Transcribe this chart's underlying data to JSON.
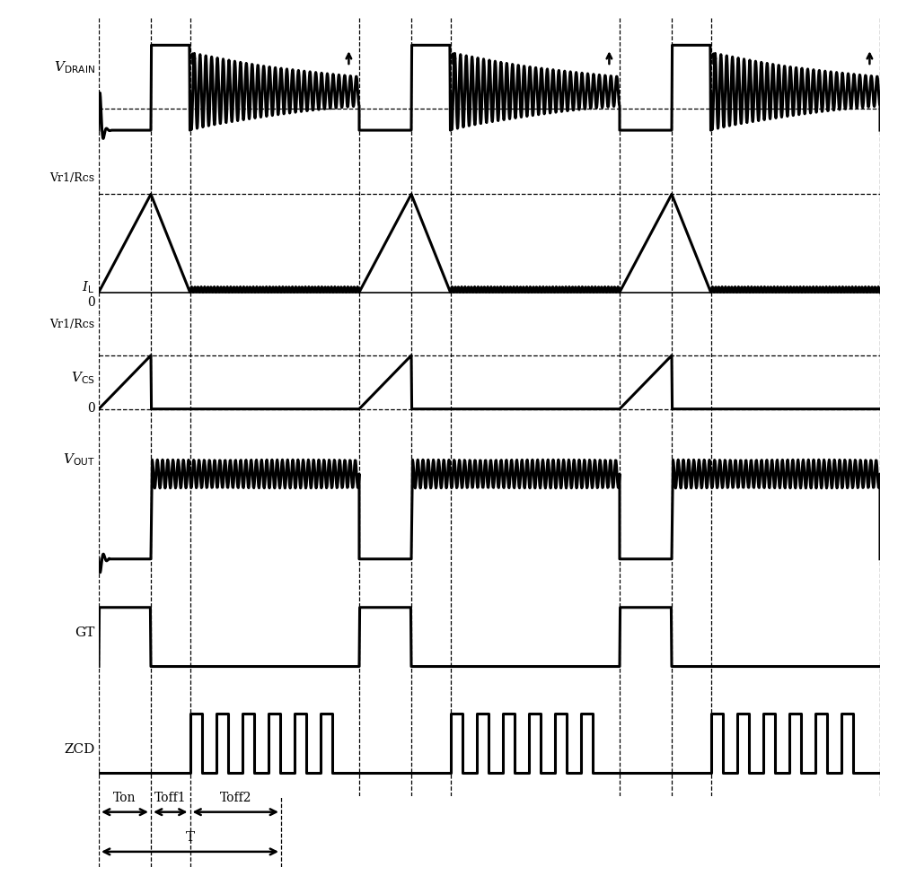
{
  "labels": {
    "V_DRAIN": "V$_{\\mathrm{DRAIN}}$",
    "Vr1Rcs_1": "Vr1/Rcs",
    "IL": "I$_{\\mathrm{L}}$",
    "IL_0": "0",
    "Vr1Rcs_2": "Vr1/Rcs",
    "V_CS": "V$_{\\mathrm{CS}}$",
    "V_CS_0": "0",
    "V_OUT": "V$_{\\mathrm{OUT}}$",
    "GT": "GT",
    "ZCD": "ZCD"
  },
  "colors": {
    "signal": "#000000",
    "background": "#ffffff"
  },
  "period": 10.0,
  "Ton": 2.0,
  "Toff1": 1.5,
  "Toff2": 3.5,
  "num_periods": 3,
  "annotation": {
    "Ton": "Ton",
    "Toff1": "Toff1",
    "Toff2": "Toff2",
    "T": "T"
  }
}
